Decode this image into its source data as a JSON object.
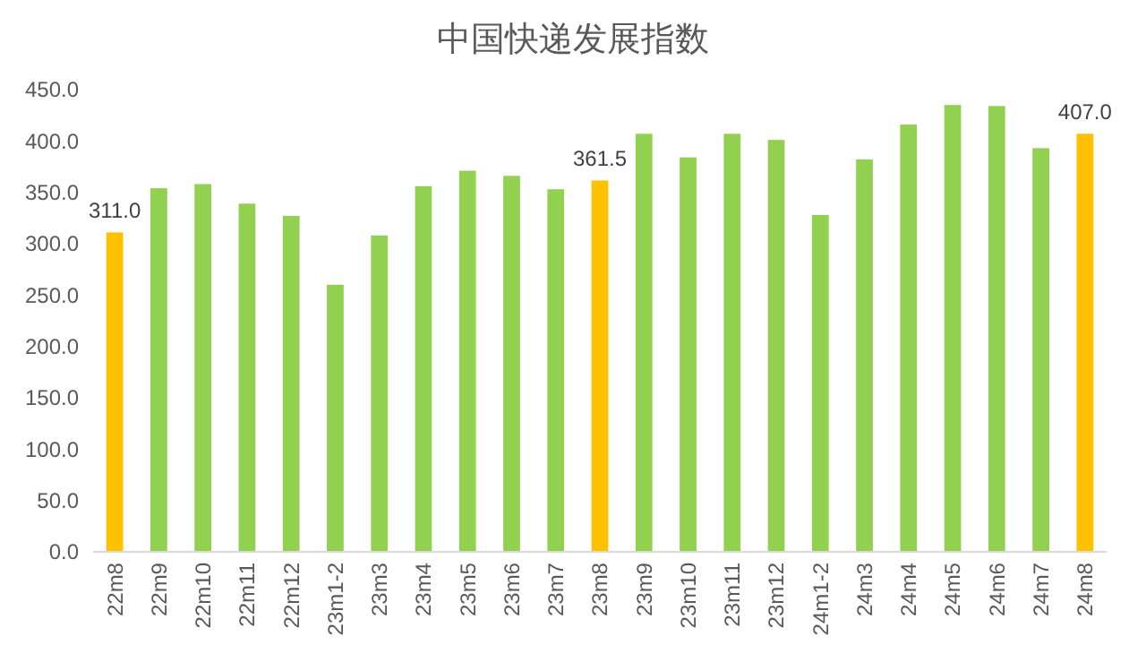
{
  "chart_data": {
    "type": "bar",
    "title": "中国快递发展指数",
    "categories": [
      "22m8",
      "22m9",
      "22m10",
      "22m11",
      "22m12",
      "23m1-2",
      "23m3",
      "23m4",
      "23m5",
      "23m6",
      "23m7",
      "23m8",
      "23m9",
      "23m10",
      "23m11",
      "23m12",
      "24m1-2",
      "24m3",
      "24m4",
      "24m5",
      "24m6",
      "24m7",
      "24m8"
    ],
    "values": [
      311.0,
      354,
      358,
      339,
      327,
      260,
      308,
      356,
      371,
      366,
      353,
      361.5,
      407,
      384,
      407,
      401,
      328,
      382,
      416,
      435,
      434,
      393,
      407.0
    ],
    "colors": [
      "#ffc000",
      "#92d050",
      "#92d050",
      "#92d050",
      "#92d050",
      "#92d050",
      "#92d050",
      "#92d050",
      "#92d050",
      "#92d050",
      "#92d050",
      "#ffc000",
      "#92d050",
      "#92d050",
      "#92d050",
      "#92d050",
      "#92d050",
      "#92d050",
      "#92d050",
      "#92d050",
      "#92d050",
      "#92d050",
      "#ffc000"
    ],
    "value_labels": [
      "311.0",
      null,
      null,
      null,
      null,
      null,
      null,
      null,
      null,
      null,
      null,
      "361.5",
      null,
      null,
      null,
      null,
      null,
      null,
      null,
      null,
      null,
      null,
      "407.0"
    ],
    "ylim": [
      0,
      450
    ],
    "yticks": [
      {
        "value": 0,
        "label": "0.0"
      },
      {
        "value": 50,
        "label": "50.0"
      },
      {
        "value": 100,
        "label": "100.0"
      },
      {
        "value": 150,
        "label": "150.0"
      },
      {
        "value": 200,
        "label": "200.0"
      },
      {
        "value": 250,
        "label": "250.0"
      },
      {
        "value": 300,
        "label": "300.0"
      },
      {
        "value": 350,
        "label": "350.0"
      },
      {
        "value": 400,
        "label": "400.0"
      },
      {
        "value": 450,
        "label": "450.0"
      }
    ],
    "grid": false
  }
}
